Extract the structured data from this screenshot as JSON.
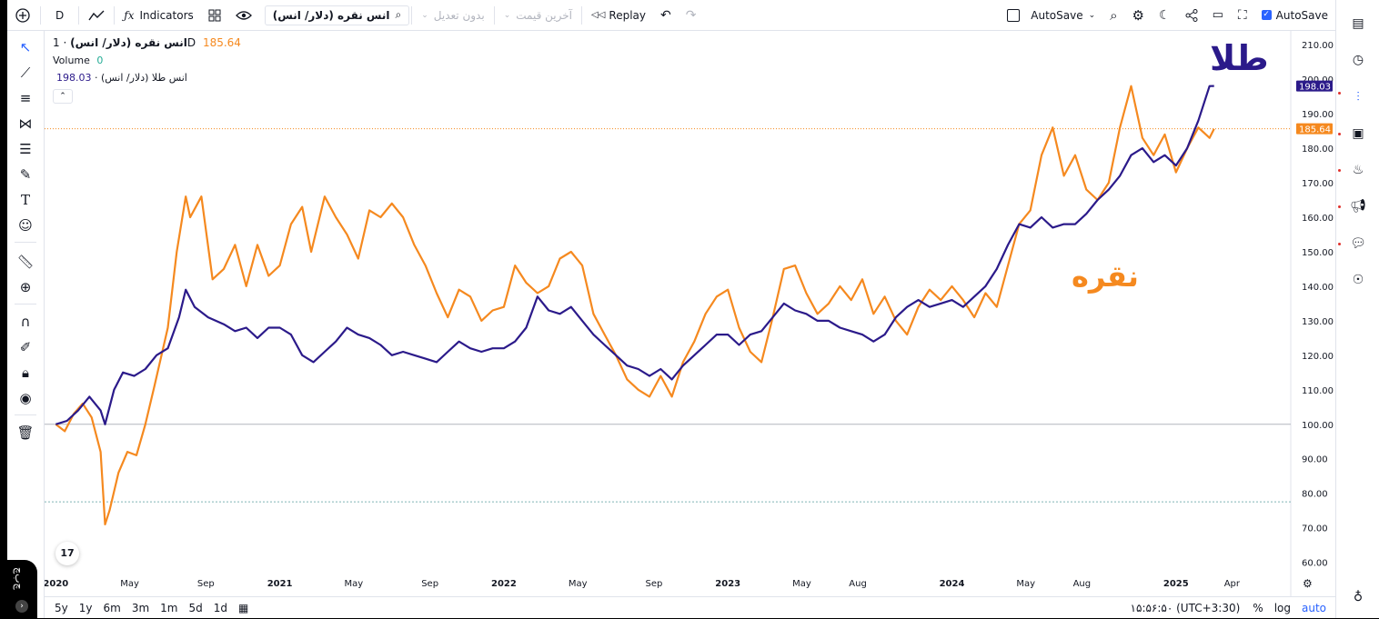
{
  "toolbar": {
    "interval": "D",
    "indicators": "Indicators",
    "symbol": "انس نقره (دلار/ انس)",
    "adjust": "بدون تعدیل",
    "last_price": "آخرین قیمت",
    "replay": "Replay",
    "autosave_left": "AutoSave",
    "autosave_right": "AutoSave"
  },
  "legend": {
    "main_symbol": "انس نقره (دلار/ انس)",
    "main_interval": "· 1D",
    "main_value": "185.64",
    "volume_label": "Volume",
    "volume_value": "0",
    "compare_symbol": "انس طلا (دلار/ انس) ·",
    "compare_value": "198.03"
  },
  "annotations": {
    "gold": "طلا",
    "silver": "نقره"
  },
  "bottom": {
    "timeframes": [
      "5y",
      "1y",
      "6m",
      "3m",
      "1m",
      "5d",
      "1d"
    ],
    "clock": "۱۵:۵۶:۵۰ (UTC+3:30)",
    "percent": "%",
    "log": "log",
    "auto": "auto"
  },
  "corner_text": "چ‌ب‌چ",
  "colors": {
    "silver": "#f5891f",
    "gold": "#2b1a8a",
    "accent": "#2962ff"
  },
  "chart_data": {
    "type": "line",
    "x_ticks": [
      "2020",
      "May",
      "Sep",
      "2021",
      "May",
      "Sep",
      "2022",
      "May",
      "Sep",
      "2023",
      "May",
      "Aug",
      "2024",
      "May",
      "Aug",
      "2025",
      "Apr"
    ],
    "y_ticks": [
      "210.00",
      "200.00",
      "190.00",
      "180.00",
      "170.00",
      "160.00",
      "150.00",
      "140.00",
      "130.00",
      "120.00",
      "110.00",
      "100.00",
      "90.00",
      "80.00",
      "70.00",
      "60.00"
    ],
    "ylim": [
      57,
      214
    ],
    "xlim": [
      2019.95,
      2025.35
    ],
    "series": [
      {
        "name": "انس نقره (دلار/ انس)",
        "color": "#f5891f",
        "last": 185.64,
        "points": [
          [
            2020.0,
            100
          ],
          [
            2020.04,
            98
          ],
          [
            2020.08,
            103
          ],
          [
            2020.12,
            106
          ],
          [
            2020.16,
            102
          ],
          [
            2020.2,
            92
          ],
          [
            2020.22,
            71
          ],
          [
            2020.24,
            75
          ],
          [
            2020.28,
            86
          ],
          [
            2020.32,
            92
          ],
          [
            2020.36,
            91
          ],
          [
            2020.4,
            100
          ],
          [
            2020.44,
            111
          ],
          [
            2020.5,
            128
          ],
          [
            2020.54,
            150
          ],
          [
            2020.58,
            166
          ],
          [
            2020.6,
            160
          ],
          [
            2020.65,
            166
          ],
          [
            2020.7,
            142
          ],
          [
            2020.75,
            145
          ],
          [
            2020.8,
            152
          ],
          [
            2020.85,
            140
          ],
          [
            2020.9,
            152
          ],
          [
            2020.95,
            143
          ],
          [
            2021.0,
            146
          ],
          [
            2021.05,
            158
          ],
          [
            2021.1,
            163
          ],
          [
            2021.14,
            150
          ],
          [
            2021.2,
            166
          ],
          [
            2021.25,
            160
          ],
          [
            2021.3,
            155
          ],
          [
            2021.35,
            148
          ],
          [
            2021.4,
            162
          ],
          [
            2021.45,
            160
          ],
          [
            2021.5,
            164
          ],
          [
            2021.55,
            160
          ],
          [
            2021.6,
            152
          ],
          [
            2021.65,
            146
          ],
          [
            2021.7,
            138
          ],
          [
            2021.75,
            131
          ],
          [
            2021.8,
            139
          ],
          [
            2021.85,
            137
          ],
          [
            2021.9,
            130
          ],
          [
            2021.95,
            133
          ],
          [
            2022.0,
            134
          ],
          [
            2022.05,
            146
          ],
          [
            2022.1,
            141
          ],
          [
            2022.15,
            138
          ],
          [
            2022.2,
            140
          ],
          [
            2022.25,
            148
          ],
          [
            2022.3,
            150
          ],
          [
            2022.35,
            146
          ],
          [
            2022.4,
            132
          ],
          [
            2022.45,
            126
          ],
          [
            2022.5,
            120
          ],
          [
            2022.55,
            113
          ],
          [
            2022.6,
            110
          ],
          [
            2022.65,
            108
          ],
          [
            2022.7,
            114
          ],
          [
            2022.75,
            108
          ],
          [
            2022.8,
            118
          ],
          [
            2022.85,
            124
          ],
          [
            2022.9,
            132
          ],
          [
            2022.95,
            137
          ],
          [
            2023.0,
            139
          ],
          [
            2023.05,
            128
          ],
          [
            2023.1,
            121
          ],
          [
            2023.15,
            118
          ],
          [
            2023.2,
            131
          ],
          [
            2023.25,
            145
          ],
          [
            2023.3,
            146
          ],
          [
            2023.35,
            138
          ],
          [
            2023.4,
            132
          ],
          [
            2023.45,
            135
          ],
          [
            2023.5,
            140
          ],
          [
            2023.55,
            136
          ],
          [
            2023.6,
            142
          ],
          [
            2023.65,
            132
          ],
          [
            2023.7,
            137
          ],
          [
            2023.75,
            130
          ],
          [
            2023.8,
            126
          ],
          [
            2023.85,
            134
          ],
          [
            2023.9,
            139
          ],
          [
            2023.95,
            136
          ],
          [
            2024.0,
            140
          ],
          [
            2024.05,
            136
          ],
          [
            2024.1,
            131
          ],
          [
            2024.15,
            138
          ],
          [
            2024.2,
            134
          ],
          [
            2024.25,
            146
          ],
          [
            2024.3,
            158
          ],
          [
            2024.35,
            162
          ],
          [
            2024.4,
            178
          ],
          [
            2024.45,
            186
          ],
          [
            2024.5,
            172
          ],
          [
            2024.55,
            178
          ],
          [
            2024.6,
            168
          ],
          [
            2024.65,
            165
          ],
          [
            2024.7,
            170
          ],
          [
            2024.75,
            186
          ],
          [
            2024.8,
            198
          ],
          [
            2024.85,
            183
          ],
          [
            2024.9,
            178
          ],
          [
            2024.95,
            184
          ],
          [
            2025.0,
            173
          ],
          [
            2025.05,
            180
          ],
          [
            2025.1,
            186
          ],
          [
            2025.15,
            183
          ],
          [
            2025.17,
            185.64
          ]
        ]
      },
      {
        "name": "انس طلا (دلار/ انس)",
        "color": "#2b1a8a",
        "last": 198.03,
        "points": [
          [
            2020.0,
            100
          ],
          [
            2020.05,
            101
          ],
          [
            2020.1,
            104
          ],
          [
            2020.15,
            108
          ],
          [
            2020.2,
            104
          ],
          [
            2020.22,
            100
          ],
          [
            2020.26,
            110
          ],
          [
            2020.3,
            115
          ],
          [
            2020.35,
            114
          ],
          [
            2020.4,
            116
          ],
          [
            2020.45,
            120
          ],
          [
            2020.5,
            122
          ],
          [
            2020.55,
            131
          ],
          [
            2020.58,
            139
          ],
          [
            2020.62,
            134
          ],
          [
            2020.68,
            131
          ],
          [
            2020.75,
            129
          ],
          [
            2020.8,
            127
          ],
          [
            2020.85,
            128
          ],
          [
            2020.9,
            125
          ],
          [
            2020.95,
            128
          ],
          [
            2021.0,
            128
          ],
          [
            2021.05,
            126
          ],
          [
            2021.1,
            120
          ],
          [
            2021.15,
            118
          ],
          [
            2021.2,
            121
          ],
          [
            2021.25,
            124
          ],
          [
            2021.3,
            128
          ],
          [
            2021.35,
            126
          ],
          [
            2021.4,
            125
          ],
          [
            2021.45,
            123
          ],
          [
            2021.5,
            120
          ],
          [
            2021.55,
            121
          ],
          [
            2021.6,
            120
          ],
          [
            2021.65,
            119
          ],
          [
            2021.7,
            118
          ],
          [
            2021.75,
            121
          ],
          [
            2021.8,
            124
          ],
          [
            2021.85,
            122
          ],
          [
            2021.9,
            121
          ],
          [
            2021.95,
            122
          ],
          [
            2022.0,
            122
          ],
          [
            2022.05,
            124
          ],
          [
            2022.1,
            128
          ],
          [
            2022.15,
            137
          ],
          [
            2022.2,
            133
          ],
          [
            2022.25,
            132
          ],
          [
            2022.3,
            134
          ],
          [
            2022.35,
            130
          ],
          [
            2022.4,
            126
          ],
          [
            2022.45,
            123
          ],
          [
            2022.5,
            120
          ],
          [
            2022.55,
            117
          ],
          [
            2022.6,
            116
          ],
          [
            2022.65,
            114
          ],
          [
            2022.7,
            116
          ],
          [
            2022.75,
            113
          ],
          [
            2022.8,
            117
          ],
          [
            2022.85,
            120
          ],
          [
            2022.9,
            123
          ],
          [
            2022.95,
            126
          ],
          [
            2023.0,
            126
          ],
          [
            2023.05,
            123
          ],
          [
            2023.1,
            126
          ],
          [
            2023.15,
            127
          ],
          [
            2023.2,
            131
          ],
          [
            2023.25,
            135
          ],
          [
            2023.3,
            133
          ],
          [
            2023.35,
            132
          ],
          [
            2023.4,
            130
          ],
          [
            2023.45,
            130
          ],
          [
            2023.5,
            128
          ],
          [
            2023.55,
            127
          ],
          [
            2023.6,
            126
          ],
          [
            2023.65,
            124
          ],
          [
            2023.7,
            126
          ],
          [
            2023.75,
            131
          ],
          [
            2023.8,
            134
          ],
          [
            2023.85,
            136
          ],
          [
            2023.9,
            134
          ],
          [
            2023.95,
            135
          ],
          [
            2024.0,
            136
          ],
          [
            2024.05,
            134
          ],
          [
            2024.1,
            137
          ],
          [
            2024.15,
            140
          ],
          [
            2024.2,
            145
          ],
          [
            2024.25,
            152
          ],
          [
            2024.3,
            158
          ],
          [
            2024.35,
            157
          ],
          [
            2024.4,
            160
          ],
          [
            2024.45,
            157
          ],
          [
            2024.5,
            158
          ],
          [
            2024.55,
            158
          ],
          [
            2024.6,
            161
          ],
          [
            2024.65,
            165
          ],
          [
            2024.7,
            168
          ],
          [
            2024.75,
            172
          ],
          [
            2024.8,
            178
          ],
          [
            2024.85,
            180
          ],
          [
            2024.9,
            176
          ],
          [
            2024.95,
            178
          ],
          [
            2025.0,
            175
          ],
          [
            2025.05,
            180
          ],
          [
            2025.1,
            188
          ],
          [
            2025.15,
            198
          ],
          [
            2025.17,
            198.03
          ]
        ]
      }
    ],
    "reference_lines": [
      100,
      77.5
    ],
    "price_line": 185.64
  }
}
